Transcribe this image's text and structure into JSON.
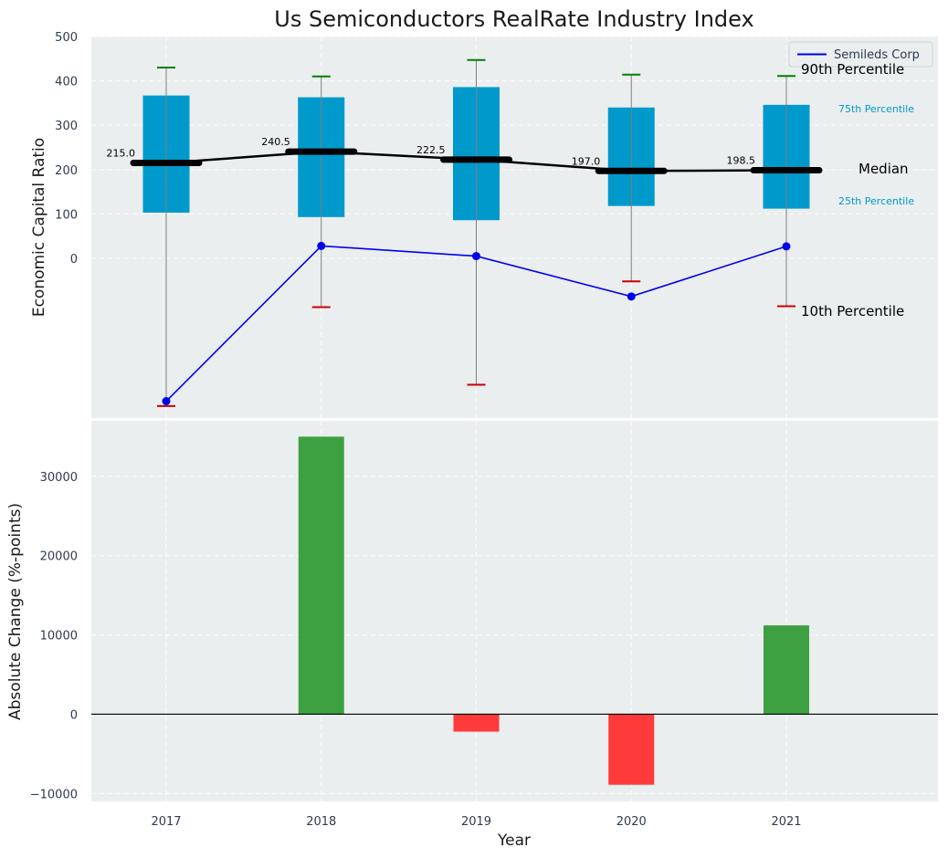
{
  "title": "Us Semiconductors RealRate Industry Index",
  "colors": {
    "panel_bg": "#eaeeef",
    "box": "#0099cc",
    "median": "#000000",
    "whisker": "#808080",
    "cap_90": "#008000",
    "cap_10": "#cc0000",
    "company": "#0000ee",
    "positive": "#2e9932",
    "negative": "#ff2a2a"
  },
  "chart_data": [
    {
      "type": "box",
      "ylabel": "Economic Capital Ratio",
      "ylim": [
        -360,
        500
      ],
      "yticks": [
        0,
        100,
        200,
        300,
        400,
        500
      ],
      "grid": true,
      "categories": [
        "2017",
        "2018",
        "2019",
        "2020",
        "2021"
      ],
      "percentile_10": [
        -333,
        -110,
        -285,
        -52,
        -108
      ],
      "percentile_25": [
        103,
        93,
        86,
        118,
        112
      ],
      "median": [
        215.0,
        240.5,
        222.5,
        197.0,
        198.5
      ],
      "percentile_75": [
        367,
        363,
        386,
        340,
        346
      ],
      "percentile_90": [
        430,
        410,
        447,
        414,
        411
      ],
      "median_labels": [
        "215.0",
        "240.5",
        "222.5",
        "197.0",
        "198.5"
      ],
      "series": [
        {
          "name": "Semileds Corp",
          "values": [
            -322,
            28,
            5,
            -86,
            27
          ]
        }
      ],
      "legend": {
        "position": "top-right",
        "entries": [
          "Semileds Corp"
        ]
      },
      "annotations": {
        "p90": "90th Percentile",
        "p75": "75th Percentile",
        "median": "Median",
        "p25": "25th Percentile",
        "p10": "10th Percentile"
      }
    },
    {
      "type": "bar",
      "xlabel": "Year",
      "ylabel": "Absolute Change (%-points)",
      "ylim": [
        -11000,
        37000
      ],
      "yticks": [
        -10000,
        0,
        10000,
        20000,
        30000
      ],
      "ytick_labels": [
        "−10000",
        "0",
        "10000",
        "20000",
        "30000"
      ],
      "grid": true,
      "categories": [
        "2017",
        "2018",
        "2019",
        "2020",
        "2021"
      ],
      "values": [
        0,
        35000,
        -2200,
        -8900,
        11200
      ]
    }
  ]
}
